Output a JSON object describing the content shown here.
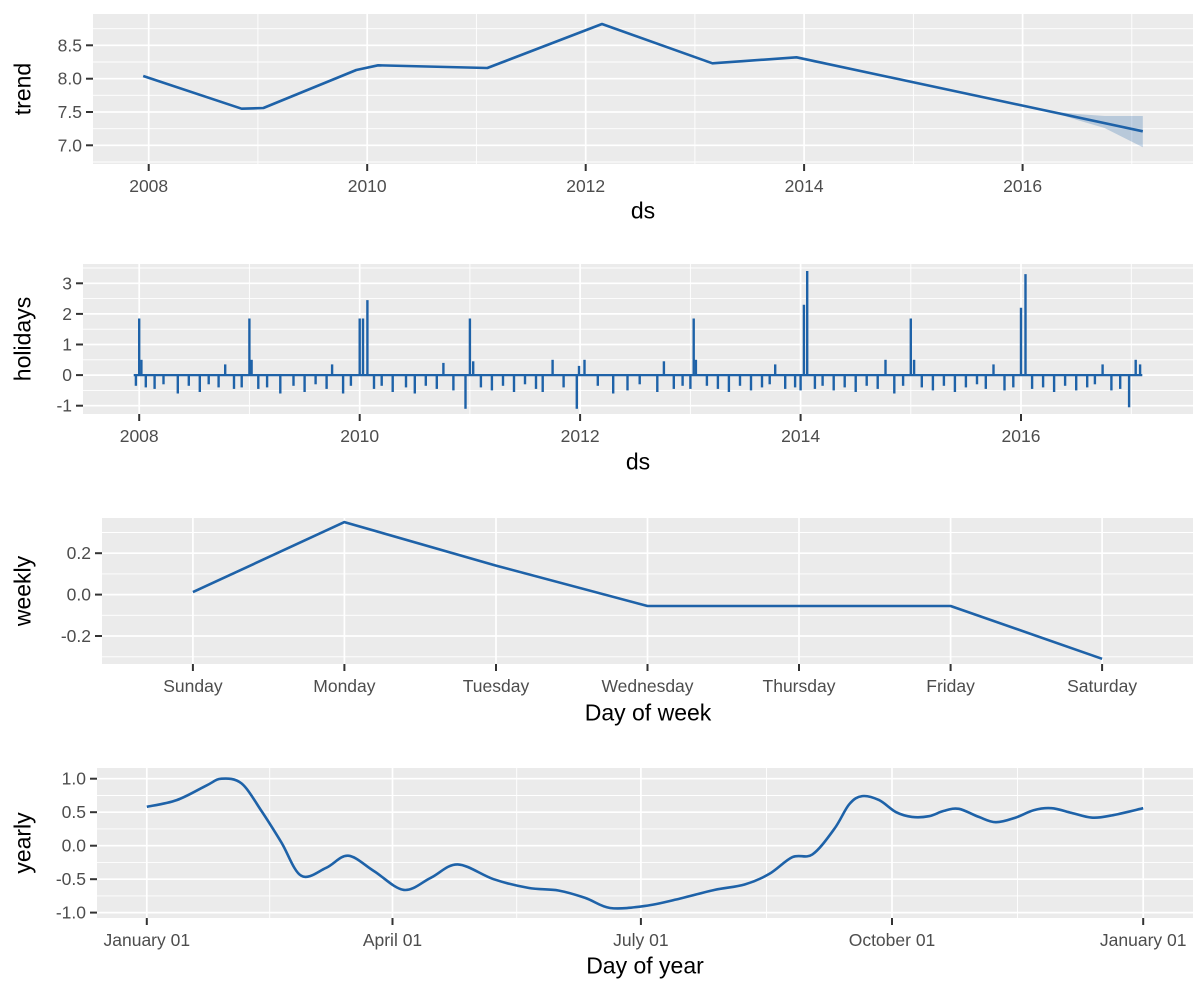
{
  "figure": {
    "description": "Prophet forecast components plot with four stacked panels",
    "colors": {
      "line": "#1e62a8",
      "band_fill": "rgba(30,98,168,0.25)",
      "panel_background": "#ebebeb",
      "gridline": "#ffffff",
      "tick_mark": "#333333",
      "tick_label": "#4d4d4d",
      "axis_title": "#000000"
    }
  },
  "chart_data": [
    {
      "type": "line",
      "title": "trend component",
      "ylabel": "trend",
      "xlabel": "ds",
      "x_domain": [
        2007.49,
        2017.56
      ],
      "x_ticks": [
        [
          2008,
          "2008"
        ],
        [
          2010,
          "2010"
        ],
        [
          2012,
          "2012"
        ],
        [
          2014,
          "2014"
        ],
        [
          2016,
          "2016"
        ]
      ],
      "x_minor": [
        2009,
        2011,
        2013,
        2015,
        2017
      ],
      "y_domain": [
        6.72,
        8.97
      ],
      "y_ticks": [
        [
          7.0,
          "7.0"
        ],
        [
          7.5,
          "7.5"
        ],
        [
          8.0,
          "8.0"
        ],
        [
          8.5,
          "8.5"
        ]
      ],
      "y_minor": [
        6.75,
        7.25,
        7.75,
        8.25,
        8.75
      ],
      "series": [
        [
          2007.95,
          8.04
        ],
        [
          2008.85,
          7.55
        ],
        [
          2009.05,
          7.56
        ],
        [
          2009.9,
          8.13
        ],
        [
          2010.1,
          8.2
        ],
        [
          2011.1,
          8.16
        ],
        [
          2012.15,
          8.82
        ],
        [
          2013.16,
          8.23
        ],
        [
          2013.93,
          8.32
        ],
        [
          2017.1,
          7.21
        ]
      ],
      "band": [
        [
          2016.25,
          7.51,
          7.51
        ],
        [
          2016.5,
          7.47,
          7.38
        ],
        [
          2016.75,
          7.44,
          7.26
        ],
        [
          2017.1,
          7.44,
          6.97
        ]
      ]
    },
    {
      "type": "spikes",
      "title": "holidays component",
      "ylabel": "holidays",
      "xlabel": "ds",
      "x_domain": [
        2007.49,
        2017.56
      ],
      "x_ticks": [
        [
          2008,
          "2008"
        ],
        [
          2010,
          "2010"
        ],
        [
          2012,
          "2012"
        ],
        [
          2014,
          "2014"
        ],
        [
          2016,
          "2016"
        ]
      ],
      "x_minor": [
        2009,
        2011,
        2013,
        2015,
        2017
      ],
      "y_domain": [
        -1.27,
        3.63
      ],
      "y_ticks": [
        [
          -1,
          "-1"
        ],
        [
          0,
          "0"
        ],
        [
          1,
          "1"
        ],
        [
          2,
          "2"
        ],
        [
          3,
          "3"
        ]
      ],
      "y_minor": [
        -0.5,
        0.5,
        1.5,
        2.5,
        3.5
      ],
      "baseline_y": 0,
      "baseline_x": [
        2007.95,
        2017.1
      ],
      "spikes": [
        [
          2007.97,
          -0.35
        ],
        [
          2008.0,
          1.85
        ],
        [
          2008.02,
          0.5
        ],
        [
          2008.06,
          -0.4
        ],
        [
          2008.14,
          -0.45
        ],
        [
          2008.22,
          -0.3
        ],
        [
          2008.35,
          -0.6
        ],
        [
          2008.45,
          -0.35
        ],
        [
          2008.55,
          -0.55
        ],
        [
          2008.63,
          -0.3
        ],
        [
          2008.72,
          -0.4
        ],
        [
          2008.78,
          0.35
        ],
        [
          2008.86,
          -0.45
        ],
        [
          2008.93,
          -0.4
        ],
        [
          2009.0,
          1.85
        ],
        [
          2009.02,
          0.5
        ],
        [
          2009.08,
          -0.45
        ],
        [
          2009.16,
          -0.4
        ],
        [
          2009.28,
          -0.6
        ],
        [
          2009.4,
          -0.35
        ],
        [
          2009.5,
          -0.55
        ],
        [
          2009.6,
          -0.3
        ],
        [
          2009.7,
          -0.45
        ],
        [
          2009.75,
          0.35
        ],
        [
          2009.85,
          -0.6
        ],
        [
          2009.92,
          -0.35
        ],
        [
          2010.0,
          1.85
        ],
        [
          2010.03,
          1.85
        ],
        [
          2010.07,
          2.45
        ],
        [
          2010.13,
          -0.45
        ],
        [
          2010.2,
          -0.35
        ],
        [
          2010.3,
          -0.55
        ],
        [
          2010.42,
          -0.4
        ],
        [
          2010.5,
          -0.6
        ],
        [
          2010.6,
          -0.35
        ],
        [
          2010.7,
          -0.45
        ],
        [
          2010.76,
          0.4
        ],
        [
          2010.85,
          -0.5
        ],
        [
          2010.96,
          -1.1
        ],
        [
          2011.0,
          1.85
        ],
        [
          2011.03,
          0.45
        ],
        [
          2011.1,
          -0.4
        ],
        [
          2011.2,
          -0.5
        ],
        [
          2011.3,
          -0.35
        ],
        [
          2011.4,
          -0.55
        ],
        [
          2011.5,
          -0.3
        ],
        [
          2011.6,
          -0.45
        ],
        [
          2011.66,
          -0.55
        ],
        [
          2011.75,
          0.5
        ],
        [
          2011.85,
          -0.4
        ],
        [
          2011.97,
          -1.1
        ],
        [
          2011.99,
          0.3
        ],
        [
          2012.04,
          0.5
        ],
        [
          2012.16,
          -0.35
        ],
        [
          2012.3,
          -0.6
        ],
        [
          2012.43,
          -0.5
        ],
        [
          2012.54,
          -0.3
        ],
        [
          2012.7,
          -0.55
        ],
        [
          2012.76,
          0.45
        ],
        [
          2012.85,
          -0.45
        ],
        [
          2012.93,
          -0.35
        ],
        [
          2013.0,
          -0.45
        ],
        [
          2013.03,
          1.85
        ],
        [
          2013.05,
          0.5
        ],
        [
          2013.15,
          -0.35
        ],
        [
          2013.25,
          -0.45
        ],
        [
          2013.35,
          -0.55
        ],
        [
          2013.45,
          -0.35
        ],
        [
          2013.55,
          -0.5
        ],
        [
          2013.65,
          -0.4
        ],
        [
          2013.72,
          -0.3
        ],
        [
          2013.77,
          0.35
        ],
        [
          2013.86,
          -0.45
        ],
        [
          2013.95,
          -0.4
        ],
        [
          2014.0,
          -0.5
        ],
        [
          2014.03,
          2.3
        ],
        [
          2014.06,
          3.4
        ],
        [
          2014.13,
          -0.45
        ],
        [
          2014.2,
          -0.35
        ],
        [
          2014.3,
          -0.5
        ],
        [
          2014.4,
          -0.4
        ],
        [
          2014.5,
          -0.55
        ],
        [
          2014.6,
          -0.35
        ],
        [
          2014.7,
          -0.45
        ],
        [
          2014.77,
          0.5
        ],
        [
          2014.85,
          -0.6
        ],
        [
          2014.93,
          -0.35
        ],
        [
          2015.0,
          1.85
        ],
        [
          2015.03,
          0.5
        ],
        [
          2015.1,
          -0.4
        ],
        [
          2015.2,
          -0.5
        ],
        [
          2015.3,
          -0.35
        ],
        [
          2015.4,
          -0.55
        ],
        [
          2015.5,
          -0.4
        ],
        [
          2015.6,
          -0.3
        ],
        [
          2015.68,
          -0.45
        ],
        [
          2015.75,
          0.35
        ],
        [
          2015.85,
          -0.5
        ],
        [
          2015.93,
          -0.4
        ],
        [
          2016.0,
          2.2
        ],
        [
          2016.04,
          3.3
        ],
        [
          2016.1,
          -0.45
        ],
        [
          2016.2,
          -0.4
        ],
        [
          2016.3,
          -0.55
        ],
        [
          2016.4,
          -0.35
        ],
        [
          2016.5,
          -0.5
        ],
        [
          2016.6,
          -0.4
        ],
        [
          2016.67,
          -0.3
        ],
        [
          2016.74,
          0.35
        ],
        [
          2016.82,
          -0.5
        ],
        [
          2016.9,
          -0.45
        ],
        [
          2016.98,
          -1.05
        ],
        [
          2017.04,
          0.5
        ],
        [
          2017.08,
          0.35
        ]
      ]
    },
    {
      "type": "categorical-line",
      "title": "weekly component",
      "ylabel": "weekly",
      "xlabel": "Day of week",
      "categories": [
        "Sunday",
        "Monday",
        "Tuesday",
        "Wednesday",
        "Thursday",
        "Friday",
        "Saturday"
      ],
      "values": [
        0.012,
        0.35,
        0.14,
        -0.055,
        -0.055,
        -0.055,
        -0.31
      ],
      "y_domain": [
        -0.335,
        0.37
      ],
      "y_ticks": [
        [
          -0.2,
          "-0.2"
        ],
        [
          0,
          "0.0"
        ],
        [
          0.2,
          "0.2"
        ]
      ],
      "y_minor": [
        -0.3,
        -0.1,
        0.1,
        0.3
      ]
    },
    {
      "type": "smooth",
      "title": "yearly component",
      "ylabel": "yearly",
      "xlabel": "Day of year",
      "x_domain": [
        -0.05,
        1.05
      ],
      "x_ticks": [
        [
          0,
          "January 01"
        ],
        [
          0.2466,
          "April 01"
        ],
        [
          0.4959,
          "July 01"
        ],
        [
          0.7479,
          "October 01"
        ],
        [
          1,
          "January 01"
        ]
      ],
      "x_minor": [
        0.1233,
        0.3712,
        0.6219,
        0.8739
      ],
      "y_domain": [
        -1.08,
        1.16
      ],
      "y_ticks": [
        [
          -1,
          "-1.0"
        ],
        [
          -0.5,
          "-0.5"
        ],
        [
          0,
          "0.0"
        ],
        [
          0.5,
          "0.5"
        ],
        [
          1,
          "1.0"
        ]
      ],
      "y_minor": [
        -0.75,
        -0.25,
        0.25,
        0.75
      ],
      "points": [
        [
          0.0,
          0.58
        ],
        [
          0.03,
          0.68
        ],
        [
          0.06,
          0.9
        ],
        [
          0.075,
          1.0
        ],
        [
          0.095,
          0.93
        ],
        [
          0.115,
          0.52
        ],
        [
          0.135,
          0.05
        ],
        [
          0.155,
          -0.45
        ],
        [
          0.18,
          -0.33
        ],
        [
          0.202,
          -0.15
        ],
        [
          0.228,
          -0.38
        ],
        [
          0.258,
          -0.66
        ],
        [
          0.285,
          -0.48
        ],
        [
          0.312,
          -0.28
        ],
        [
          0.348,
          -0.5
        ],
        [
          0.383,
          -0.63
        ],
        [
          0.413,
          -0.67
        ],
        [
          0.44,
          -0.78
        ],
        [
          0.465,
          -0.93
        ],
        [
          0.5,
          -0.9
        ],
        [
          0.535,
          -0.79
        ],
        [
          0.57,
          -0.66
        ],
        [
          0.6,
          -0.58
        ],
        [
          0.625,
          -0.42
        ],
        [
          0.648,
          -0.17
        ],
        [
          0.668,
          -0.13
        ],
        [
          0.69,
          0.25
        ],
        [
          0.705,
          0.62
        ],
        [
          0.718,
          0.74
        ],
        [
          0.735,
          0.68
        ],
        [
          0.752,
          0.5
        ],
        [
          0.768,
          0.43
        ],
        [
          0.785,
          0.44
        ],
        [
          0.8,
          0.52
        ],
        [
          0.815,
          0.55
        ],
        [
          0.835,
          0.43
        ],
        [
          0.852,
          0.35
        ],
        [
          0.872,
          0.42
        ],
        [
          0.89,
          0.53
        ],
        [
          0.908,
          0.56
        ],
        [
          0.928,
          0.49
        ],
        [
          0.948,
          0.42
        ],
        [
          0.968,
          0.45
        ],
        [
          1.0,
          0.56
        ]
      ]
    }
  ]
}
